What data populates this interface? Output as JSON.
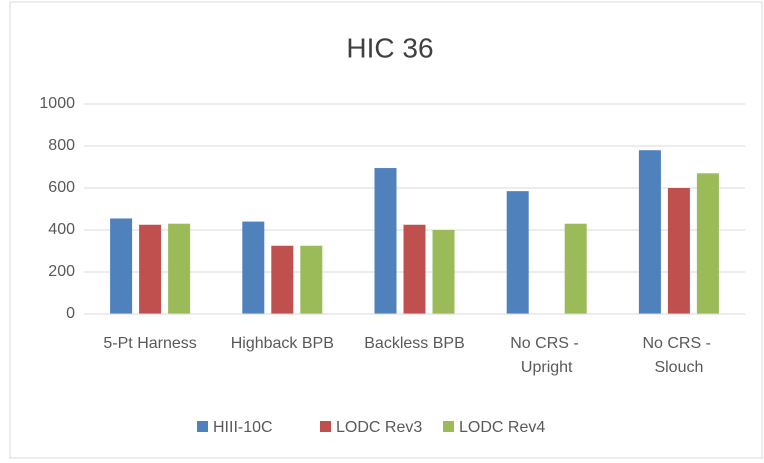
{
  "chart_data": {
    "type": "bar",
    "title": "HIC 36",
    "categories": [
      "5-Pt Harness",
      "Highback BPB",
      "Backless BPB",
      "No CRS - Upright",
      "No CRS - Slouch"
    ],
    "series": [
      {
        "name": "HIII-10C",
        "color": "#4f81bd",
        "values": [
          455,
          440,
          695,
          585,
          780
        ]
      },
      {
        "name": "LODC Rev3",
        "color": "#c0504d",
        "values": [
          425,
          325,
          425,
          null,
          600
        ]
      },
      {
        "name": "LODC Rev4",
        "color": "#9bbb59",
        "values": [
          430,
          325,
          400,
          430,
          670
        ]
      }
    ],
    "ylim": [
      0,
      1000
    ],
    "yticks": [
      0,
      200,
      400,
      600,
      800,
      1000
    ],
    "grid": true,
    "legend": "bottom"
  }
}
